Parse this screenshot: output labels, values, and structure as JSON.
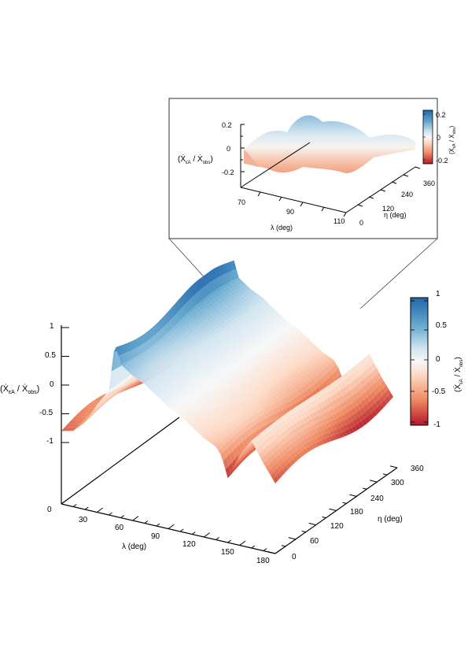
{
  "chart_data": [
    {
      "type": "surface3d",
      "role": "main",
      "x_axis": {
        "label": "λ (deg)",
        "range": [
          0,
          180
        ],
        "ticks": [
          "0",
          "30",
          "60",
          "90",
          "120",
          "150",
          "180"
        ]
      },
      "y_axis": {
        "label": "η (deg)",
        "range": [
          0,
          360
        ],
        "ticks": [
          "0",
          "60",
          "120",
          "180",
          "240",
          "300",
          "360"
        ]
      },
      "z_axis": {
        "label": "(Ẋ",
        "sub": "ε̇A",
        "label_tail": " / Ẋ",
        "sub2": "obs",
        "label_end": ")",
        "range": [
          -1,
          1
        ],
        "ticks": [
          "1",
          "0.5",
          "0",
          "-0.5",
          "-1"
        ]
      },
      "colorbar": {
        "ticks": [
          "1",
          "0.5",
          "0",
          "-0.5",
          "-1"
        ],
        "range": [
          -1,
          1
        ],
        "label": "(Ẋ",
        "sub": "ε̇A",
        "label_tail": " / Ẋ",
        "sub2": "obs",
        "label_end": ")"
      },
      "colormap": [
        "#b2182b",
        "#ef8a62",
        "#fddbc7",
        "#f7f7f7",
        "#d1e5f0",
        "#67a9cf",
        "#2166ac"
      ],
      "surface_profile": {
        "lambda_deg": [
          0,
          10,
          20,
          30,
          40,
          45,
          50,
          60,
          70,
          80,
          90,
          100,
          110,
          120,
          130,
          135,
          140,
          150,
          160,
          170,
          180
        ],
        "value_at_eta_0": [
          -0.8,
          -0.75,
          -0.55,
          -0.2,
          0.1,
          0.95,
          0.6,
          0.45,
          0.35,
          0.2,
          0.05,
          -0.05,
          -0.2,
          -0.35,
          -0.45,
          -0.6,
          -0.95,
          -0.5,
          -0.2,
          -0.55,
          -0.85
        ]
      }
    },
    {
      "type": "surface3d",
      "role": "inset",
      "x_axis": {
        "label": "λ (deg)",
        "range": [
          60,
          110
        ],
        "ticks": [
          "70",
          "90",
          "110"
        ]
      },
      "y_axis": {
        "label": "η (deg)",
        "range": [
          0,
          360
        ],
        "ticks": [
          "0",
          "120",
          "240",
          "360"
        ]
      },
      "z_axis": {
        "range": [
          -0.2,
          0.2
        ],
        "ticks": [
          "0.2",
          "0",
          "-0.2"
        ]
      },
      "colorbar": {
        "ticks": [
          "0.2",
          "0",
          "-0.2"
        ],
        "range": [
          -0.2,
          0.2
        ]
      }
    }
  ]
}
